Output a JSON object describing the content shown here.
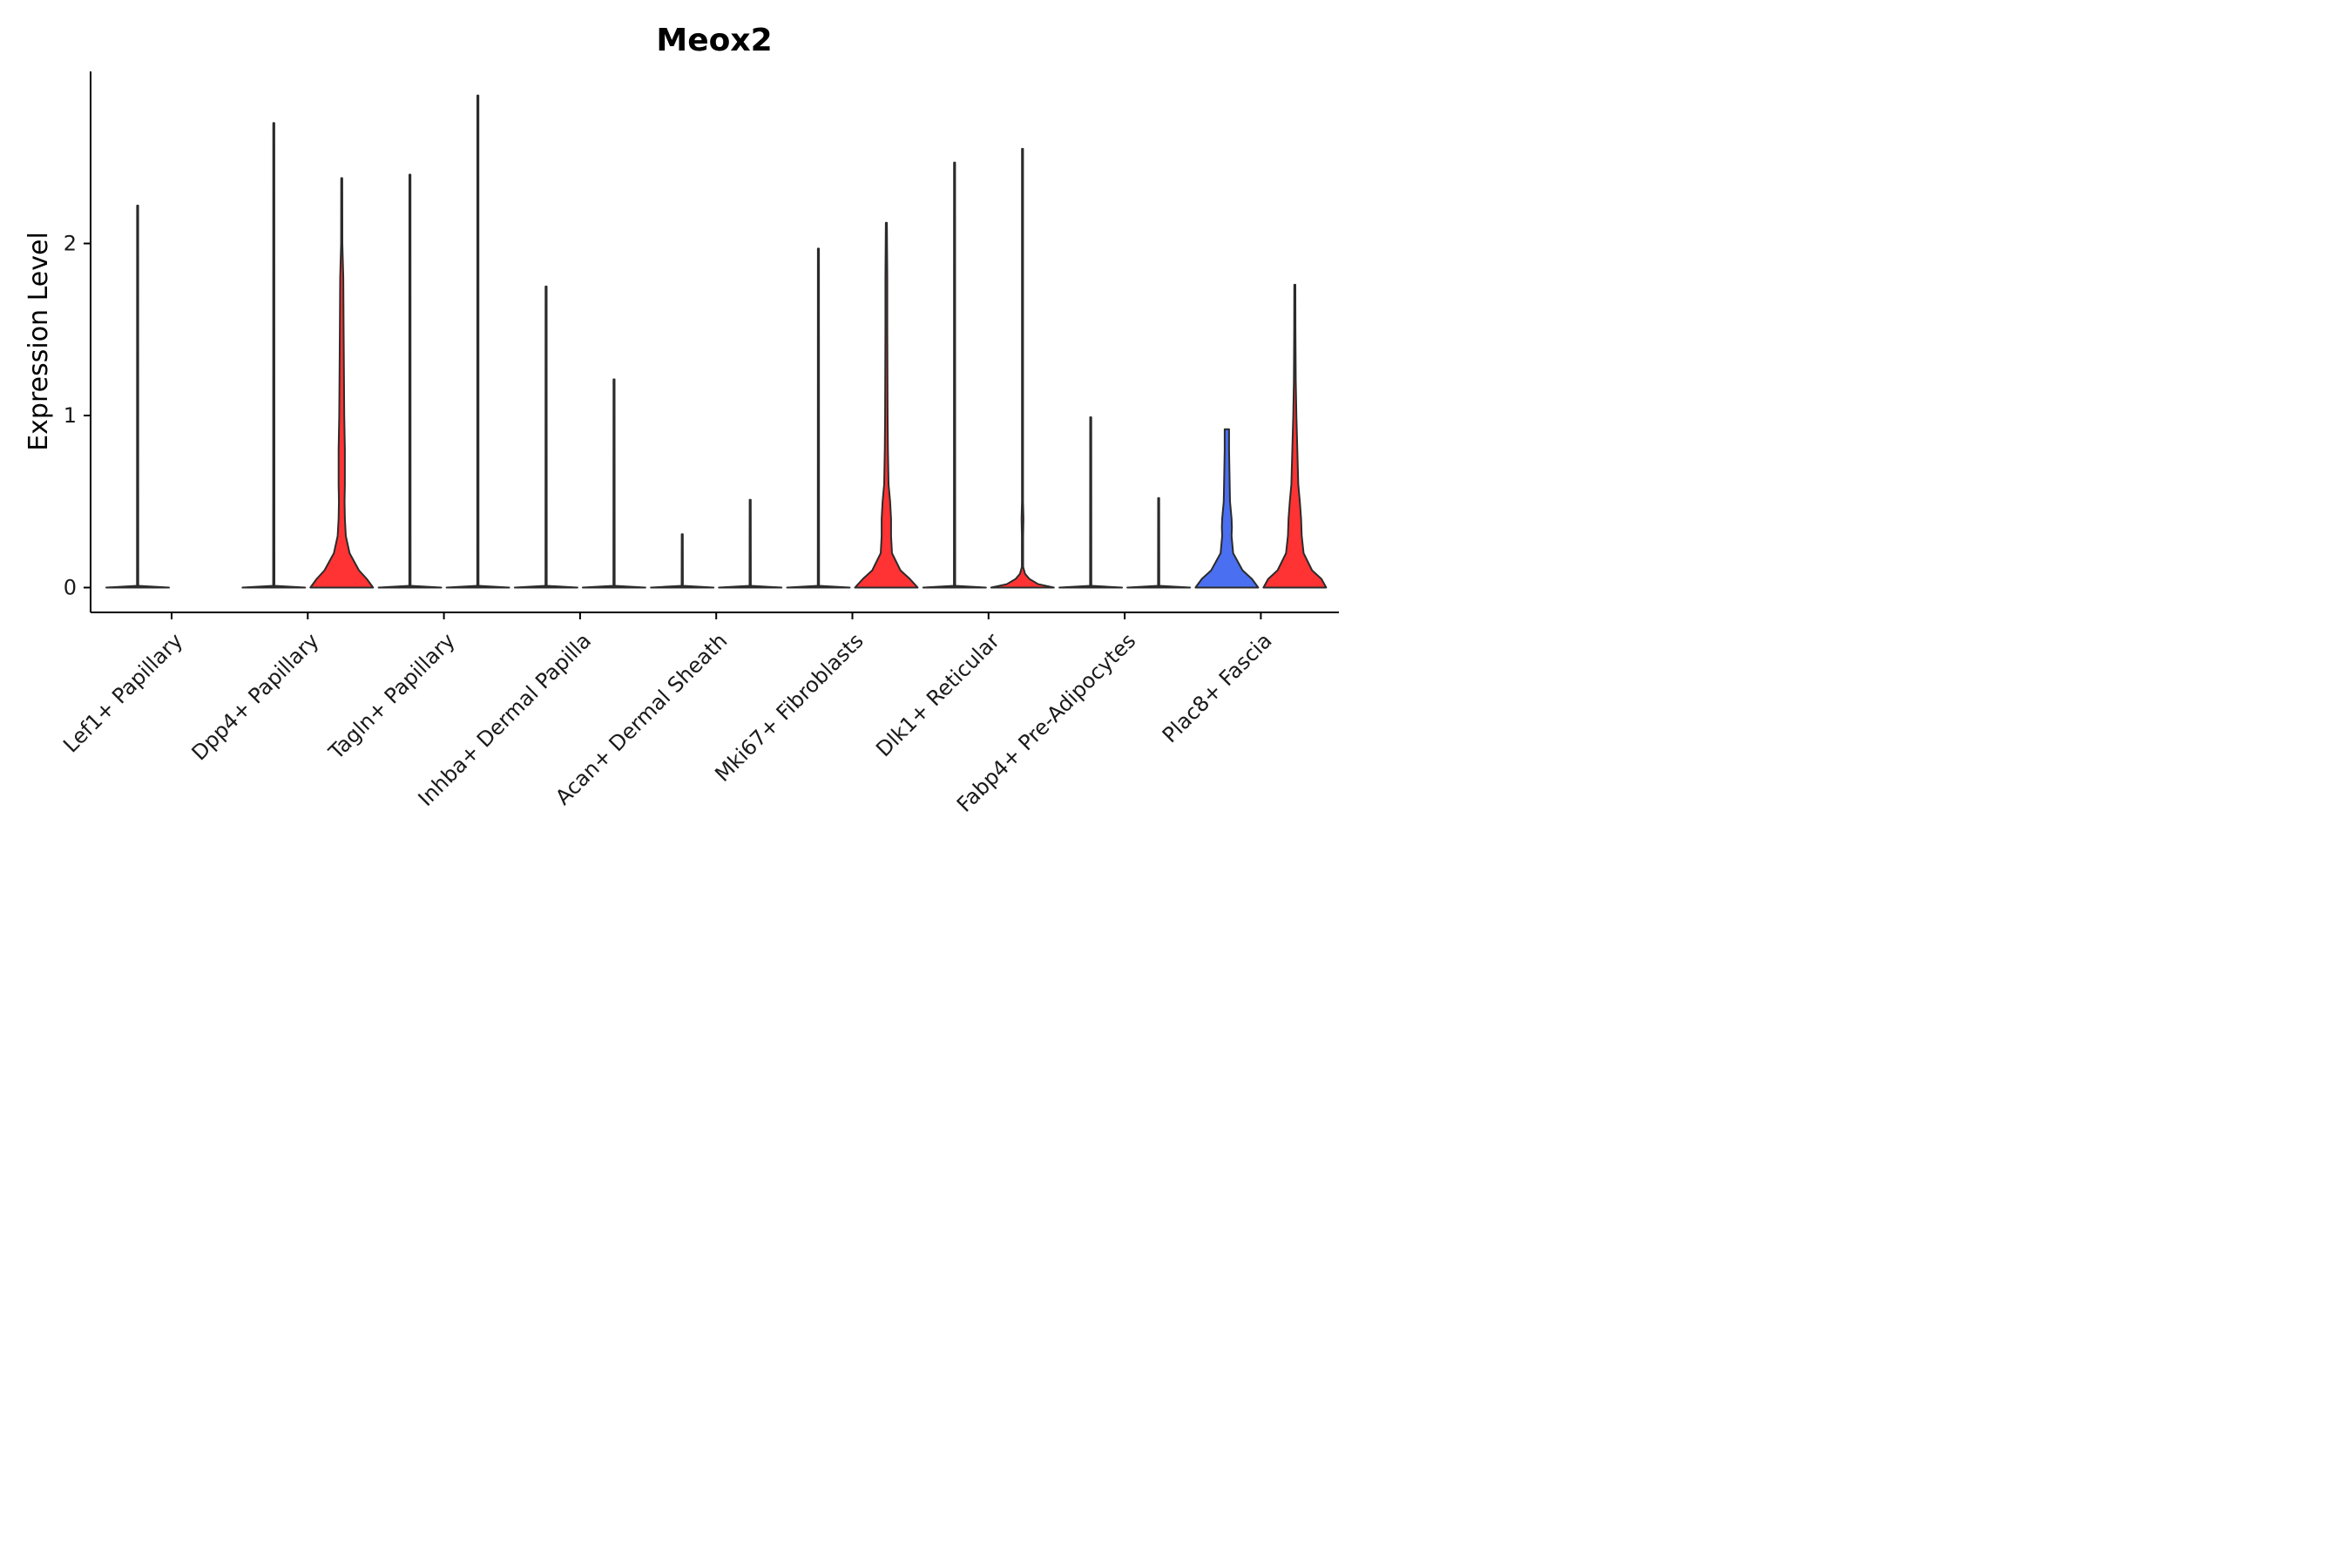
{
  "chart_data": {
    "type": "violin",
    "title": "Meox2",
    "xlabel": "",
    "ylabel": "Expression Level",
    "ylim": [
      -0.15,
      3.0
    ],
    "yticks": [
      0,
      1,
      2
    ],
    "grid": false,
    "legend": "none",
    "categories": [
      "Lef1+ Papillary",
      "Dpp4+ Papillary",
      "Tagln+ Papillary",
      "Inhba+ Dermal Papilla",
      "Acan+ Dermal Sheath",
      "Mki67+ Fibroblasts",
      "Dlk1+ Reticular",
      "Fabp4+ Pre-Adipocytes",
      "Plac8+ Fascia"
    ],
    "groups": [
      {
        "category": "Lef1+ Papillary",
        "violins": [
          {
            "color": "#2b2b2b",
            "max": 2.22,
            "profile": [
              [
                0,
                1.0
              ],
              [
                0.01,
                0.02
              ],
              [
                2.22,
                0.01
              ]
            ]
          },
          null
        ]
      },
      {
        "category": "Dpp4+ Papillary",
        "violins": [
          {
            "color": "#2b2b2b",
            "max": 2.7,
            "profile": [
              [
                0,
                1.0
              ],
              [
                0.01,
                0.02
              ],
              [
                2.7,
                0.01
              ]
            ]
          },
          {
            "color": "#ff3333",
            "max": 2.38,
            "profile": [
              [
                0,
                1.0
              ],
              [
                0.05,
                0.8
              ],
              [
                0.1,
                0.55
              ],
              [
                0.2,
                0.25
              ],
              [
                0.3,
                0.13
              ],
              [
                0.4,
                0.1
              ],
              [
                0.5,
                0.09
              ],
              [
                0.6,
                0.1
              ],
              [
                0.8,
                0.1
              ],
              [
                1.0,
                0.08
              ],
              [
                1.5,
                0.06
              ],
              [
                1.8,
                0.05
              ],
              [
                2.0,
                0.02
              ],
              [
                2.38,
                0.01
              ]
            ]
          }
        ]
      },
      {
        "category": "Tagln+ Papillary",
        "violins": [
          {
            "color": "#2b2b2b",
            "max": 2.4,
            "profile": [
              [
                0,
                1.0
              ],
              [
                0.01,
                0.02
              ],
              [
                2.4,
                0.01
              ]
            ]
          },
          {
            "color": "#2b2b2b",
            "max": 2.86,
            "profile": [
              [
                0,
                1.0
              ],
              [
                0.01,
                0.02
              ],
              [
                2.86,
                0.01
              ]
            ]
          }
        ]
      },
      {
        "category": "Inhba+ Dermal Papilla",
        "violins": [
          {
            "color": "#2b2b2b",
            "max": 1.75,
            "profile": [
              [
                0,
                1.0
              ],
              [
                0.01,
                0.02
              ],
              [
                1.75,
                0.01
              ]
            ]
          },
          {
            "color": "#2b2b2b",
            "max": 1.21,
            "profile": [
              [
                0,
                1.0
              ],
              [
                0.01,
                0.02
              ],
              [
                1.21,
                0.01
              ]
            ]
          }
        ]
      },
      {
        "category": "Acan+ Dermal Sheath",
        "violins": [
          {
            "color": "#2b2b2b",
            "max": 0.31,
            "profile": [
              [
                0,
                1.0
              ],
              [
                0.01,
                0.02
              ],
              [
                0.31,
                0.01
              ]
            ]
          },
          {
            "color": "#2b2b2b",
            "max": 0.51,
            "profile": [
              [
                0,
                1.0
              ],
              [
                0.01,
                0.02
              ],
              [
                0.51,
                0.01
              ]
            ]
          }
        ]
      },
      {
        "category": "Mki67+ Fibroblasts",
        "violins": [
          {
            "color": "#2b2b2b",
            "max": 1.97,
            "profile": [
              [
                0,
                1.0
              ],
              [
                0.01,
                0.02
              ],
              [
                1.97,
                0.01
              ]
            ]
          },
          {
            "color": "#ff3333",
            "max": 2.12,
            "profile": [
              [
                0,
                1.0
              ],
              [
                0.05,
                0.75
              ],
              [
                0.1,
                0.45
              ],
              [
                0.2,
                0.18
              ],
              [
                0.3,
                0.15
              ],
              [
                0.4,
                0.15
              ],
              [
                0.5,
                0.12
              ],
              [
                0.6,
                0.07
              ],
              [
                0.8,
                0.05
              ],
              [
                1.0,
                0.04
              ],
              [
                1.5,
                0.03
              ],
              [
                1.8,
                0.03
              ],
              [
                2.12,
                0.01
              ]
            ]
          }
        ]
      },
      {
        "category": "Dlk1+ Reticular",
        "violins": [
          {
            "color": "#2b2b2b",
            "max": 2.47,
            "profile": [
              [
                0,
                1.0
              ],
              [
                0.01,
                0.02
              ],
              [
                2.47,
                0.01
              ]
            ]
          },
          {
            "color": "#ff3333",
            "max": 2.55,
            "profile": [
              [
                0,
                1.0
              ],
              [
                0.02,
                0.5
              ],
              [
                0.05,
                0.22
              ],
              [
                0.08,
                0.08
              ],
              [
                0.12,
                0.02
              ],
              [
                0.3,
                0.02
              ],
              [
                0.4,
                0.03
              ],
              [
                0.5,
                0.01
              ],
              [
                2.55,
                0.01
              ]
            ]
          }
        ]
      },
      {
        "category": "Fabp4+ Pre-Adipocytes",
        "violins": [
          {
            "color": "#2b2b2b",
            "max": 0.99,
            "profile": [
              [
                0,
                1.0
              ],
              [
                0.01,
                0.02
              ],
              [
                0.99,
                0.01
              ]
            ]
          },
          {
            "color": "#2b2b2b",
            "max": 0.52,
            "profile": [
              [
                0,
                1.0
              ],
              [
                0.01,
                0.02
              ],
              [
                0.52,
                0.01
              ]
            ]
          }
        ]
      },
      {
        "category": "Plac8+ Fascia",
        "violins": [
          {
            "color": "#4a6ff0",
            "max": 0.92,
            "profile": [
              [
                0,
                1.0
              ],
              [
                0.05,
                0.8
              ],
              [
                0.1,
                0.5
              ],
              [
                0.2,
                0.2
              ],
              [
                0.3,
                0.15
              ],
              [
                0.35,
                0.16
              ],
              [
                0.4,
                0.15
              ],
              [
                0.5,
                0.1
              ],
              [
                0.6,
                0.09
              ],
              [
                0.7,
                0.08
              ],
              [
                0.8,
                0.07
              ],
              [
                0.92,
                0.07
              ]
            ]
          },
          {
            "color": "#ff3333",
            "max": 1.76,
            "profile": [
              [
                0,
                1.0
              ],
              [
                0.05,
                0.85
              ],
              [
                0.1,
                0.55
              ],
              [
                0.2,
                0.28
              ],
              [
                0.3,
                0.22
              ],
              [
                0.4,
                0.2
              ],
              [
                0.5,
                0.16
              ],
              [
                0.6,
                0.11
              ],
              [
                0.8,
                0.08
              ],
              [
                1.0,
                0.05
              ],
              [
                1.2,
                0.03
              ],
              [
                1.5,
                0.02
              ],
              [
                1.76,
                0.01
              ]
            ]
          }
        ]
      }
    ]
  }
}
